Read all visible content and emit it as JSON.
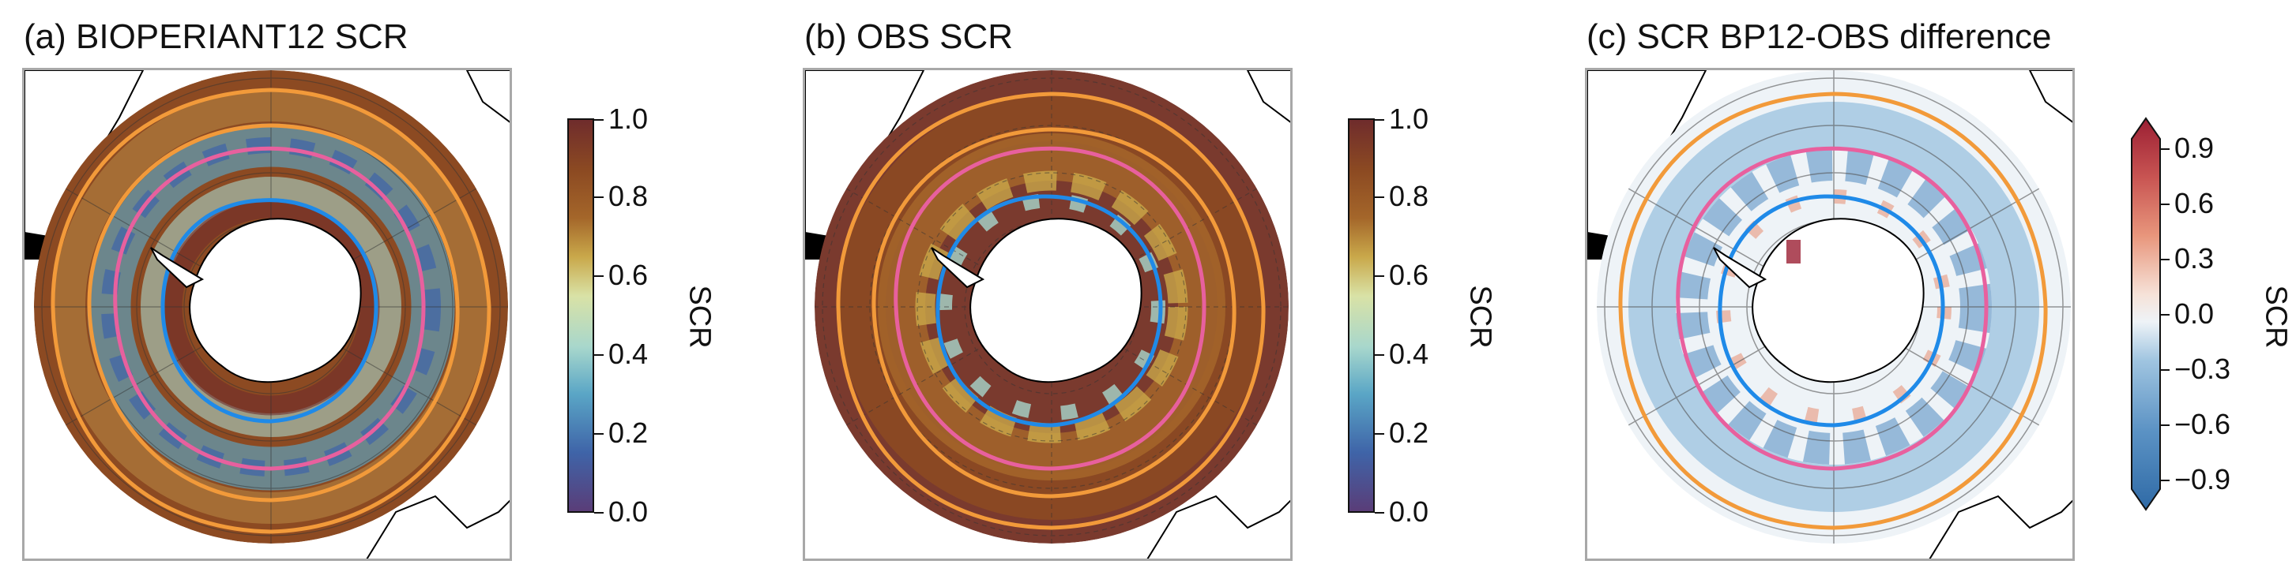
{
  "panels": [
    {
      "title": "(a) BIOPERIANT12 SCR",
      "colorbar": {
        "label": "SCR",
        "ticks": [
          "0.0",
          "0.2",
          "0.4",
          "0.6",
          "0.8",
          "1.0"
        ]
      },
      "dominant_color": "#8c4a22"
    },
    {
      "title": "(b) OBS SCR",
      "colorbar": {
        "label": "SCR",
        "ticks": [
          "0.0",
          "0.2",
          "0.4",
          "0.6",
          "0.8",
          "1.0"
        ]
      },
      "dominant_color": "#7a3a2e"
    },
    {
      "title": "(c) SCR BP12-OBS difference",
      "colorbar": {
        "label": "SCR",
        "ticks": [
          "−0.9",
          "−0.6",
          "−0.3",
          "0.0",
          "0.3",
          "0.6",
          "0.9"
        ]
      },
      "dominant_color": "#dbe8f3"
    }
  ],
  "colors": {
    "front_orange": "#f29a3a",
    "front_pink": "#e8609e",
    "front_blue": "#1f8ae8",
    "sequential_scale": [
      "#5a3d78",
      "#3f64a8",
      "#5aa6c6",
      "#a8d7cc",
      "#d9e2a6",
      "#c9a84a",
      "#a4662a",
      "#8c4a22",
      "#6f2c2c"
    ],
    "diverging_scale": [
      "#2f6aa6",
      "#5b92c4",
      "#9fc4e0",
      "#d7e7f2",
      "#f7f7f7",
      "#f6d2c3",
      "#e8967c",
      "#c85452",
      "#9b1f33"
    ]
  }
}
